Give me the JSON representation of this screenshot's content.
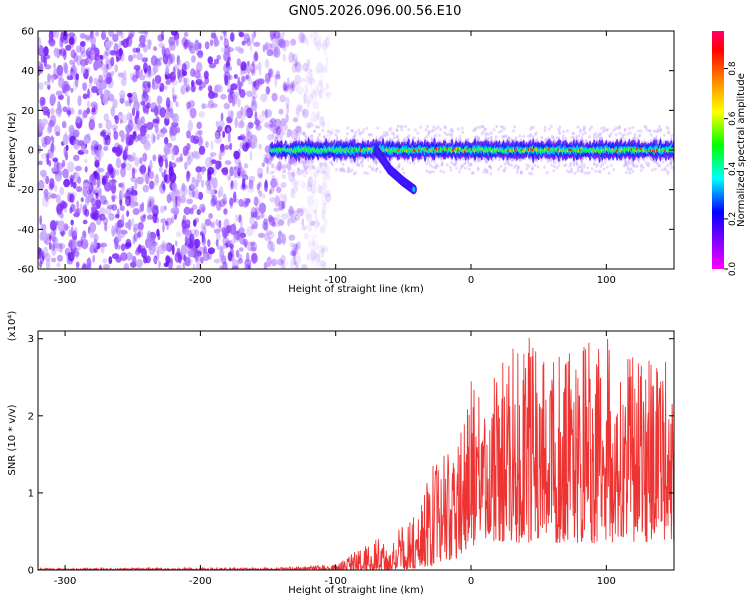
{
  "title": "GN05.2026.096.00.56.E10",
  "chart_data": [
    {
      "type": "heatmap",
      "xlabel": "Height of straight line (km)",
      "ylabel": "Frequency (Hz)",
      "xlim": [
        -320,
        150
      ],
      "ylim": [
        -60,
        60
      ],
      "x_ticks": [
        -300,
        -200,
        -100,
        0,
        100
      ],
      "y_ticks": [
        -60,
        -40,
        -20,
        0,
        20,
        40,
        60
      ],
      "grid": false,
      "colorbar": {
        "label": "Normalized spectral amplitude",
        "range": [
          0,
          0.95
        ],
        "ticks": [
          "0.0",
          "0.2",
          "0.4",
          "0.6",
          "0.8"
        ],
        "colormap": [
          "#ff00ff",
          "#8000ff",
          "#0000ff",
          "#00ffff",
          "#00ff00",
          "#ffff00",
          "#ff8000",
          "#ff0000",
          "#ff0066"
        ]
      },
      "features": {
        "noise_region_x": [
          -320,
          -115
        ],
        "noise_color": "#7a1fff",
        "signal_band_x": [
          -148,
          150
        ],
        "signal_center_freq": 0,
        "signal_halfwidth": 5,
        "branch": [
          [
            -70,
            0
          ],
          [
            -60,
            -10
          ],
          [
            -50,
            -16
          ],
          [
            -42,
            -20
          ]
        ]
      }
    },
    {
      "type": "line",
      "xlabel": "Height of straight line (km)",
      "ylabel": "SNR (10 * v/v)",
      "y_multiplier": "(x10⁴)",
      "xlim": [
        -320,
        150
      ],
      "ylim": [
        0,
        3.1
      ],
      "x_ticks": [
        -300,
        -200,
        -100,
        0,
        100
      ],
      "y_ticks": [
        0,
        1,
        2,
        3
      ],
      "grid": false,
      "series": [
        {
          "color": "#ee3333",
          "envelope": {
            "x": [
              -320,
              -150,
              -120,
              -100,
              -90,
              -80,
              -70,
              -60,
              -50,
              -40,
              -30,
              -20,
              -10,
              0,
              10,
              20,
              40,
              60,
              80,
              100,
              120,
              150
            ],
            "low": [
              0,
              0,
              0,
              0,
              0,
              0,
              0,
              0,
              0.01,
              0.02,
              0.03,
              0.08,
              0.15,
              0.3,
              0.4,
              0.35,
              0.35,
              0.35,
              0.35,
              0.35,
              0.35,
              0.35
            ],
            "high": [
              0.02,
              0.03,
              0.05,
              0.08,
              0.2,
              0.3,
              0.42,
              0.3,
              0.65,
              0.7,
              1.35,
              1.5,
              1.6,
              2.6,
              2.0,
              2.7,
              3.05,
              2.8,
              2.9,
              3.05,
              2.8,
              2.7
            ]
          }
        }
      ]
    }
  ]
}
